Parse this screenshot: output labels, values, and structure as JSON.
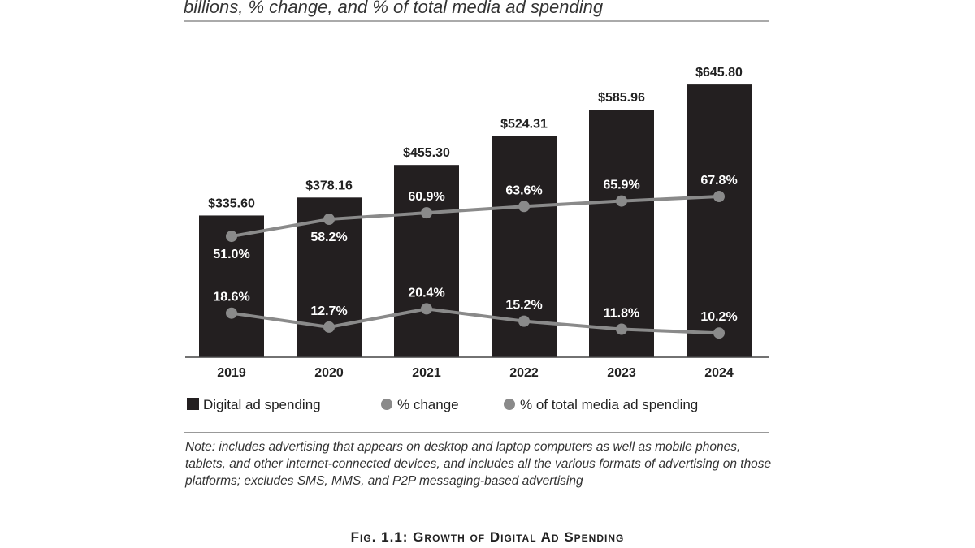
{
  "subtitle": "billions, % change, and % of total media ad spending",
  "note": "Note: includes advertising that appears on desktop and laptop computers as well as mobile phones, tablets, and other internet-connected devices, and includes all the various formats of advertising on those platforms; excludes SMS, MMS, and P2P messaging-based advertising",
  "caption": "Fig. 1.1: Growth of Digital Ad Spending",
  "chart_data": {
    "type": "bar",
    "categories": [
      "2019",
      "2020",
      "2021",
      "2022",
      "2023",
      "2024"
    ],
    "series": [
      {
        "name": "Digital ad spending",
        "type": "bar",
        "values": [
          335.6,
          378.16,
          455.3,
          524.31,
          585.96,
          645.8
        ],
        "labels": [
          "$335.60",
          "$378.16",
          "$455.30",
          "$524.31",
          "$585.96",
          "$645.80"
        ],
        "color": "#231f20"
      },
      {
        "name": "% change",
        "type": "line",
        "axis": "secondary",
        "values": [
          18.6,
          12.7,
          20.4,
          15.2,
          11.8,
          10.2
        ],
        "labels": [
          "18.6%",
          "12.7%",
          "20.4%",
          "15.2%",
          "11.8%",
          "10.2%"
        ],
        "color": "#8a8a8a"
      },
      {
        "name": "% of total media ad spending",
        "type": "line",
        "axis": "secondary",
        "values": [
          51.0,
          58.2,
          60.9,
          63.6,
          65.9,
          67.8
        ],
        "labels": [
          "51.0%",
          "58.2%",
          "60.9%",
          "63.6%",
          "65.9%",
          "67.8%"
        ],
        "color": "#8a8a8a"
      }
    ],
    "ylim": [
      0,
      646
    ],
    "y2lim": [
      0,
      115
    ],
    "grid": false,
    "legend": "bottom"
  }
}
